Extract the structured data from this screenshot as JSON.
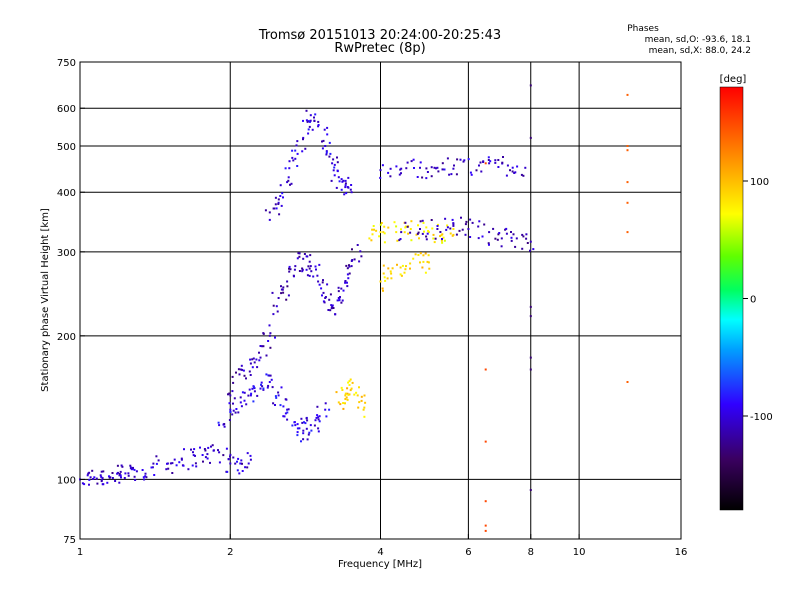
{
  "chart_data": {
    "type": "scatter",
    "title": "Tromsø 20151013 20:24:00-20:25:43",
    "subtitle": "RwPretec (8p)",
    "stats": {
      "heading": "Phases",
      "line_o": "mean, sd,O: -93.6, 18.1",
      "line_x": "mean, sd,X:  88.0, 24.2"
    },
    "xlabel": "Frequency [MHz]",
    "ylabel": "Stationary phase Virtual Height [km]",
    "xscale": "log",
    "yscale": "log",
    "xlim": [
      1,
      16
    ],
    "ylim": [
      75,
      750
    ],
    "x_ticks": [
      1,
      2,
      4,
      6,
      8,
      10,
      16
    ],
    "x_tick_labels": [
      "1",
      "2",
      "4",
      "6",
      "8",
      "10",
      "16"
    ],
    "y_ticks": [
      75,
      100,
      200,
      300,
      400,
      500,
      600,
      750
    ],
    "y_tick_labels": [
      "75",
      "100",
      "200",
      "300",
      "400",
      "500",
      "600",
      "750"
    ],
    "grid": true,
    "x_gridlines": [
      2,
      4,
      6,
      8,
      10
    ],
    "y_gridlines": [
      100,
      200,
      300,
      400,
      500,
      600
    ],
    "colorbar": {
      "label": "[deg]",
      "range": [
        -180,
        180
      ],
      "ticks": [
        100,
        0,
        -100
      ],
      "tick_labels": [
        "100",
        "0",
        "-100"
      ]
    },
    "traces": [
      {
        "role": "low-frequency trace",
        "phase": -105,
        "points": [
          [
            1.0,
            100
          ],
          [
            1.05,
            101
          ],
          [
            1.1,
            102
          ],
          [
            1.15,
            101
          ],
          [
            1.2,
            102
          ],
          [
            1.25,
            103
          ],
          [
            1.3,
            104
          ],
          [
            1.4,
            106
          ],
          [
            1.5,
            108
          ],
          [
            1.6,
            110
          ],
          [
            1.7,
            112
          ],
          [
            1.8,
            113
          ],
          [
            1.9,
            114
          ],
          [
            2.0,
            108
          ],
          [
            2.1,
            108
          ],
          [
            2.2,
            110
          ]
        ]
      },
      {
        "role": "F1 cusp trace",
        "phase": -110,
        "points": [
          [
            2.0,
            150
          ],
          [
            2.1,
            170
          ],
          [
            2.2,
            175
          ],
          [
            2.3,
            180
          ],
          [
            2.4,
            200
          ],
          [
            2.5,
            240
          ],
          [
            2.6,
            260
          ],
          [
            2.7,
            280
          ],
          [
            2.8,
            290
          ],
          [
            2.9,
            280
          ],
          [
            3.0,
            260
          ],
          [
            3.1,
            240
          ],
          [
            3.2,
            230
          ],
          [
            3.3,
            240
          ],
          [
            3.4,
            260
          ],
          [
            3.5,
            280
          ],
          [
            3.6,
            310
          ]
        ]
      },
      {
        "role": "upper trace",
        "phase": -100,
        "points": [
          [
            2.4,
            350
          ],
          [
            2.5,
            380
          ],
          [
            2.6,
            420
          ],
          [
            2.7,
            470
          ],
          [
            2.8,
            520
          ],
          [
            2.9,
            580
          ],
          [
            3.0,
            550
          ],
          [
            3.1,
            500
          ],
          [
            3.2,
            460
          ],
          [
            3.3,
            430
          ],
          [
            3.4,
            410
          ],
          [
            3.5,
            400
          ]
        ]
      },
      {
        "role": "lower dense cluster",
        "phase": -95,
        "points": [
          [
            1.9,
            130
          ],
          [
            2.0,
            140
          ],
          [
            2.1,
            145
          ],
          [
            2.2,
            150
          ],
          [
            2.3,
            155
          ],
          [
            2.4,
            160
          ],
          [
            2.5,
            150
          ],
          [
            2.6,
            140
          ],
          [
            2.7,
            130
          ],
          [
            2.8,
            125
          ],
          [
            2.9,
            130
          ],
          [
            3.0,
            135
          ],
          [
            3.1,
            140
          ]
        ]
      },
      {
        "role": "X trace cluster near 150 km",
        "phase": 90,
        "points": [
          [
            3.3,
            145
          ],
          [
            3.4,
            150
          ],
          [
            3.5,
            155
          ],
          [
            3.6,
            150
          ],
          [
            3.7,
            140
          ]
        ]
      },
      {
        "role": "X trace cluster near 330 km",
        "phase": 80,
        "points": [
          [
            3.8,
            320
          ],
          [
            4.0,
            330
          ],
          [
            4.3,
            330
          ],
          [
            4.6,
            335
          ],
          [
            5.0,
            330
          ],
          [
            5.3,
            325
          ],
          [
            5.6,
            335
          ]
        ]
      },
      {
        "role": "O trace near 330 km",
        "phase": -110,
        "points": [
          [
            4.4,
            330
          ],
          [
            4.8,
            335
          ],
          [
            5.2,
            335
          ],
          [
            5.6,
            340
          ],
          [
            6.0,
            335
          ],
          [
            6.6,
            330
          ],
          [
            7.0,
            320
          ],
          [
            7.5,
            320
          ],
          [
            8.0,
            315
          ]
        ]
      },
      {
        "role": "X trace near 280 km",
        "phase": 90,
        "points": [
          [
            4.0,
            260
          ],
          [
            4.2,
            270
          ],
          [
            4.5,
            280
          ],
          [
            4.8,
            285
          ],
          [
            5.0,
            285
          ]
        ]
      },
      {
        "role": "trace near 445 km",
        "phase": -105,
        "points": [
          [
            4.0,
            445
          ],
          [
            4.4,
            448
          ],
          [
            4.8,
            450
          ],
          [
            5.2,
            450
          ],
          [
            5.6,
            448
          ],
          [
            6.3,
            455
          ],
          [
            6.6,
            460
          ],
          [
            7.2,
            455
          ],
          [
            7.8,
            450
          ]
        ]
      },
      {
        "role": "scatter near 12.5 MHz",
        "phase": 140,
        "points": [
          [
            12.5,
            640
          ],
          [
            12.5,
            500
          ],
          [
            12.5,
            490
          ],
          [
            12.5,
            420
          ],
          [
            12.5,
            380
          ],
          [
            12.5,
            330
          ],
          [
            12.5,
            160
          ]
        ]
      },
      {
        "role": "scatter near 8 MHz",
        "phase": -130,
        "points": [
          [
            8.0,
            670
          ],
          [
            8.0,
            520
          ],
          [
            8.0,
            230
          ],
          [
            8.0,
            220
          ],
          [
            8.0,
            180
          ],
          [
            8.0,
            170
          ],
          [
            8.0,
            95
          ]
        ]
      },
      {
        "role": "scatter near 6.5 MHz",
        "phase": 150,
        "points": [
          [
            6.5,
            90
          ],
          [
            6.5,
            80
          ],
          [
            6.5,
            78
          ],
          [
            6.5,
            460
          ],
          [
            6.5,
            170
          ],
          [
            6.5,
            120
          ]
        ]
      }
    ]
  }
}
